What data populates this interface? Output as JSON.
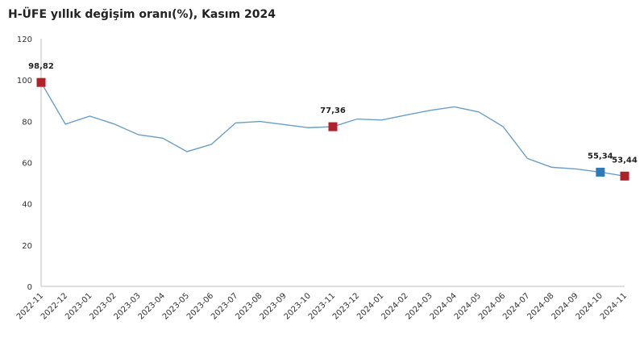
{
  "chart_data": {
    "type": "line",
    "title": "H-ÜFE yıllık değişim oranı(%), Kasım 2024",
    "xlabel": "",
    "ylabel": "",
    "ylim": [
      0,
      120
    ],
    "yticks": [
      0,
      20,
      40,
      60,
      80,
      100,
      120
    ],
    "grid": false,
    "categories": [
      "2022-11",
      "2022-12",
      "2023-01",
      "2023-02",
      "2023-03",
      "2023-04",
      "2023-05",
      "2023-06",
      "2023-07",
      "2023-08",
      "2023-09",
      "2023-10",
      "2023-11",
      "2023-12",
      "2024-01",
      "2024-02",
      "2024-03",
      "2024-04",
      "2024-05",
      "2024-06",
      "2024-07",
      "2024-08",
      "2024-09",
      "2024-10",
      "2024-11"
    ],
    "series": [
      {
        "color": "#6a9ec4",
        "values": [
          98.82,
          78.6,
          82.5,
          78.7,
          73.5,
          71.8,
          65.3,
          68.8,
          79.2,
          79.9,
          78.4,
          76.9,
          77.36,
          81.1,
          80.6,
          83.0,
          85.3,
          87.0,
          84.5,
          77.4,
          62.0,
          57.7,
          56.9,
          55.34,
          53.44
        ]
      }
    ],
    "highlights": [
      {
        "index": 0,
        "label": "98,82",
        "color": "#b0212a"
      },
      {
        "index": 12,
        "label": "77,36",
        "color": "#b0212a"
      },
      {
        "index": 23,
        "label": "55,34",
        "color": "#2e7ab8"
      },
      {
        "index": 24,
        "label": "53,44",
        "color": "#b0212a"
      }
    ]
  }
}
